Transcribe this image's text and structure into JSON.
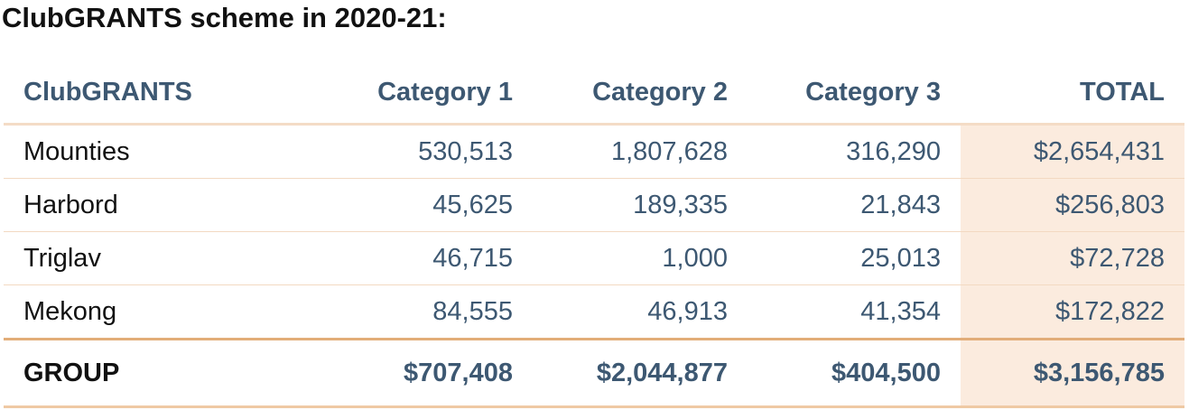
{
  "title": "ClubGRANTS scheme in 2020-21:",
  "table": {
    "headers": [
      "ClubGRANTS",
      "Category 1",
      "Category 2",
      "Category 3",
      "TOTAL"
    ],
    "rows": [
      [
        "Mounties",
        "530,513",
        "1,807,628",
        "316,290",
        "$2,654,431"
      ],
      [
        "Harbord",
        "45,625",
        "189,335",
        "21,843",
        "$256,803"
      ],
      [
        "Triglav",
        "46,715",
        "1,000",
        "25,013",
        "$72,728"
      ],
      [
        "Mekong",
        "84,555",
        "46,913",
        "41,354",
        "$172,822"
      ]
    ],
    "footer": [
      "GROUP",
      "$707,408",
      "$2,044,877",
      "$404,500",
      "$3,156,785"
    ]
  },
  "colors": {
    "header_text": "#3d5872",
    "total_column_bg": "#fbebde",
    "rule": "#e2ad79"
  }
}
